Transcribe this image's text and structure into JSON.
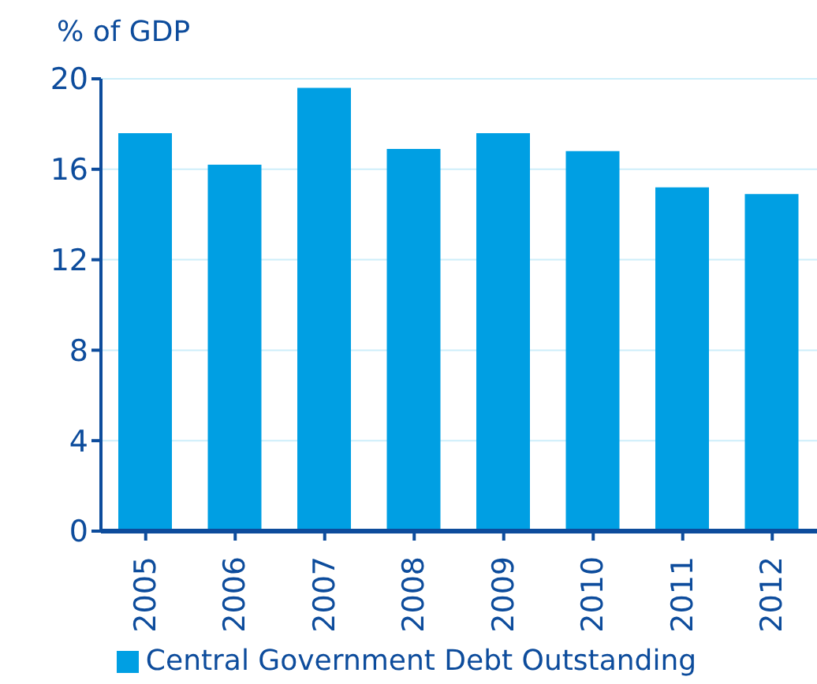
{
  "chart_data": {
    "type": "bar",
    "ylabel": "% of GDP",
    "categories": [
      "2005",
      "2006",
      "2007",
      "2008",
      "2009",
      "2010",
      "2011",
      "2012"
    ],
    "series": [
      {
        "name": "Central Government Debt Outstanding",
        "color": "#009fe3",
        "values": [
          17.6,
          16.2,
          19.6,
          16.9,
          17.6,
          16.8,
          15.2,
          14.9
        ]
      }
    ],
    "ylim": [
      0,
      20
    ],
    "yticks": [
      0,
      4,
      8,
      12,
      16,
      20
    ],
    "grid": "y",
    "legend": "bottom"
  }
}
